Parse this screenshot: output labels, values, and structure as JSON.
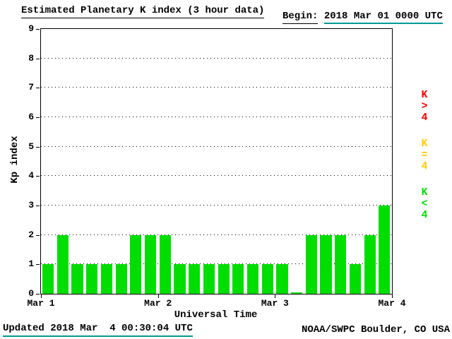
{
  "header": {
    "title": "Estimated Planetary K index (3 hour data)",
    "begin_label": "Begin:",
    "begin_value": "2018 Mar 01 0000 UTC"
  },
  "axes": {
    "y_label": "Kp index",
    "x_label": "Universal Time",
    "y_ticks": [
      0,
      1,
      2,
      3,
      4,
      5,
      6,
      7,
      8,
      9
    ],
    "x_ticks": [
      "Mar 1",
      "Mar 2",
      "Mar 3",
      "Mar 4"
    ]
  },
  "legend": [
    {
      "label": "K>4",
      "chars": [
        "K",
        ">",
        "4"
      ],
      "color": "#ff0000"
    },
    {
      "label": "K=4",
      "chars": [
        "K",
        "=",
        "4"
      ],
      "color": "#ffcc00"
    },
    {
      "label": "K<4",
      "chars": [
        "K",
        "<",
        "4"
      ],
      "color": "#00dd00"
    }
  ],
  "colors": {
    "bar_green": "#00dd00",
    "underline_teal": "#009999",
    "axis": "#000000"
  },
  "footer": {
    "updated": "Updated 2018 Mar  4 00:30:04 UTC",
    "credit": "NOAA/SWPC Boulder, CO USA"
  },
  "chart_data": {
    "type": "bar",
    "title": "Estimated Planetary K index (3 hour data)",
    "xlabel": "Universal Time",
    "ylabel": "Kp index",
    "ylim": [
      0,
      9
    ],
    "gridlines": "dotted horizontal at 1-8",
    "legend_position": "right, vertical labels",
    "start": "2018 Mar 01 0000 UTC",
    "interval_hours": 3,
    "day_labels": [
      "Mar 1",
      "Mar 2",
      "Mar 3",
      "Mar 4"
    ],
    "values": [
      1,
      2,
      1,
      1,
      1,
      1,
      2,
      2,
      2,
      1,
      1,
      1,
      1,
      1,
      1,
      1,
      1,
      0,
      2,
      2,
      2,
      1,
      2,
      3
    ],
    "color_rule": "green K<4, yellow K=4, red K>4 (all bars shown are green)"
  }
}
